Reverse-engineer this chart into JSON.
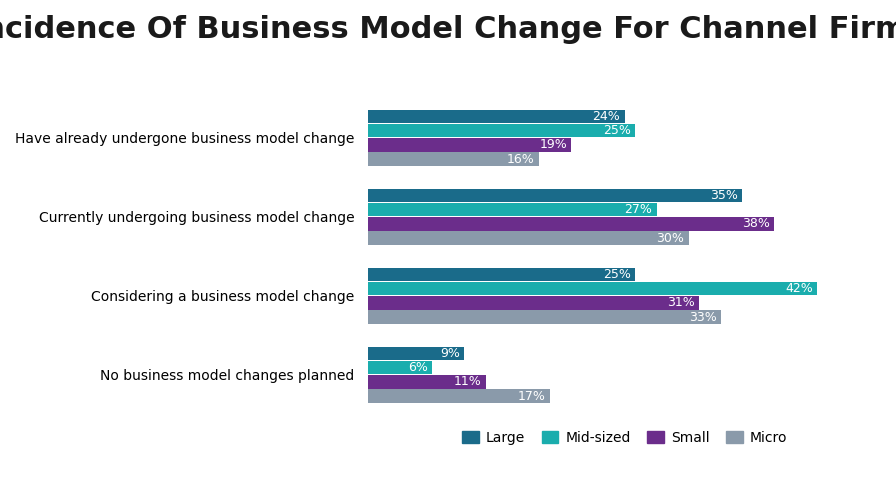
{
  "title": "Incidence Of Business Model Change For Channel Firms",
  "categories": [
    "Have already undergone business model change",
    "Currently undergoing business model change",
    "Considering a business model change",
    "No business model changes planned"
  ],
  "series": {
    "Large": [
      24,
      35,
      25,
      9
    ],
    "Mid-sized": [
      25,
      27,
      42,
      6
    ],
    "Small": [
      19,
      38,
      31,
      11
    ],
    "Micro": [
      16,
      30,
      33,
      17
    ]
  },
  "colors": {
    "Large": "#1a6b8a",
    "Mid-sized": "#1aadad",
    "Small": "#6b2d8b",
    "Micro": "#8a9aaa"
  },
  "legend_order": [
    "Large",
    "Mid-sized",
    "Small",
    "Micro"
  ],
  "background_color": "#ffffff",
  "title_fontsize": 22,
  "bar_height": 0.17,
  "bar_gap": 0.01,
  "xlim": [
    0,
    48
  ]
}
